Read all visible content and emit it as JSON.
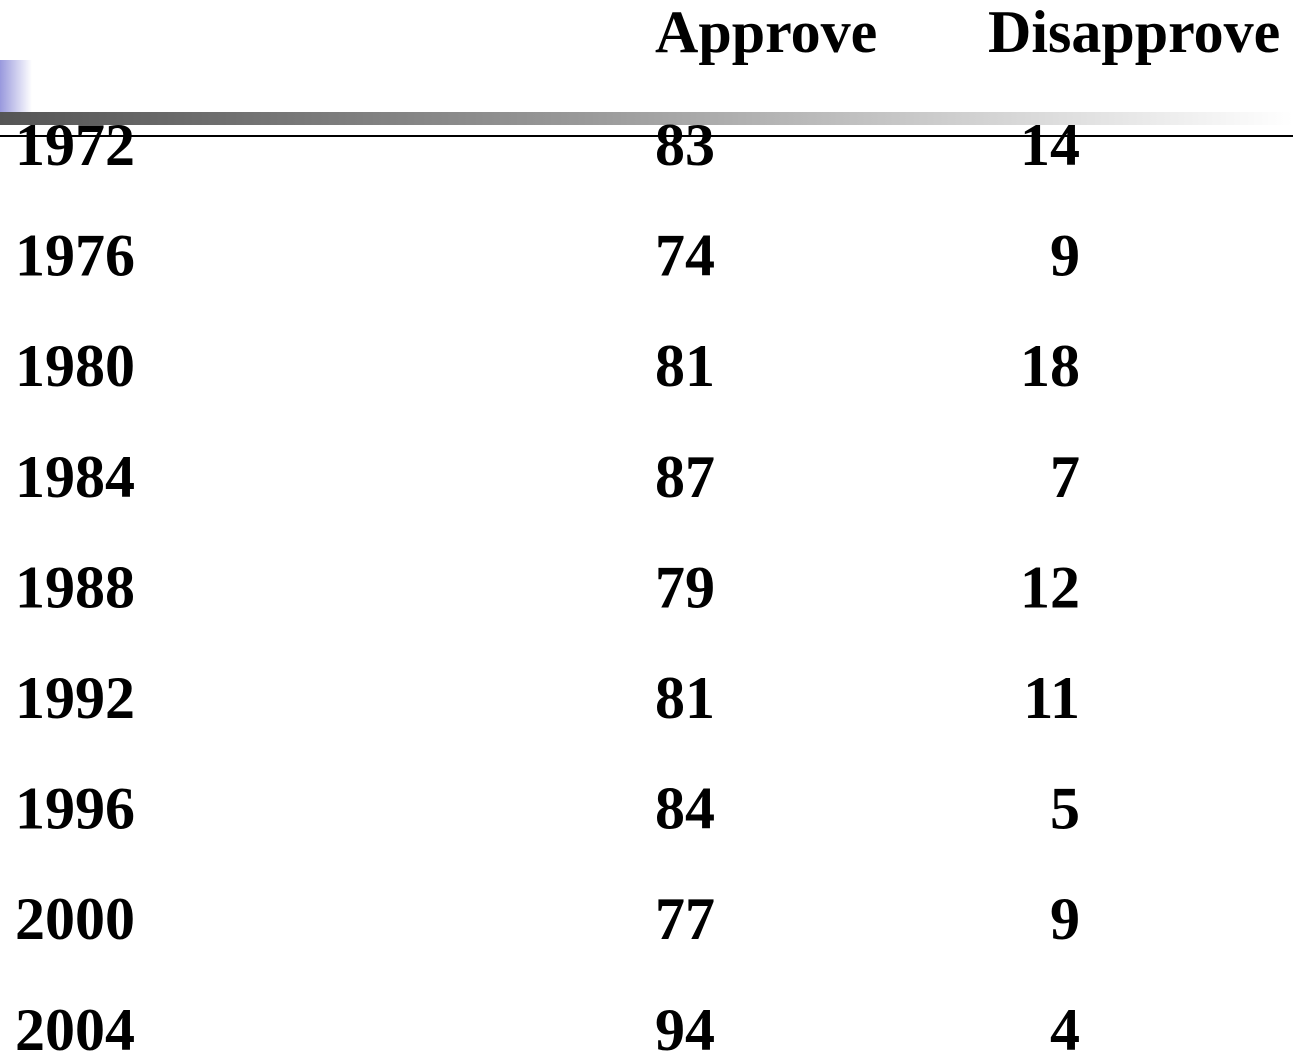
{
  "table": {
    "header": [
      "Approve",
      "Disapprove"
    ],
    "rows": [
      [
        1972,
        83,
        14
      ],
      [
        1976,
        74,
        9
      ],
      [
        1980,
        81,
        18
      ],
      [
        1984,
        87,
        7
      ],
      [
        1988,
        79,
        12
      ],
      [
        1992,
        81,
        11
      ],
      [
        1996,
        84,
        5
      ],
      [
        2000,
        77,
        9
      ],
      [
        2004,
        94,
        4
      ]
    ]
  }
}
